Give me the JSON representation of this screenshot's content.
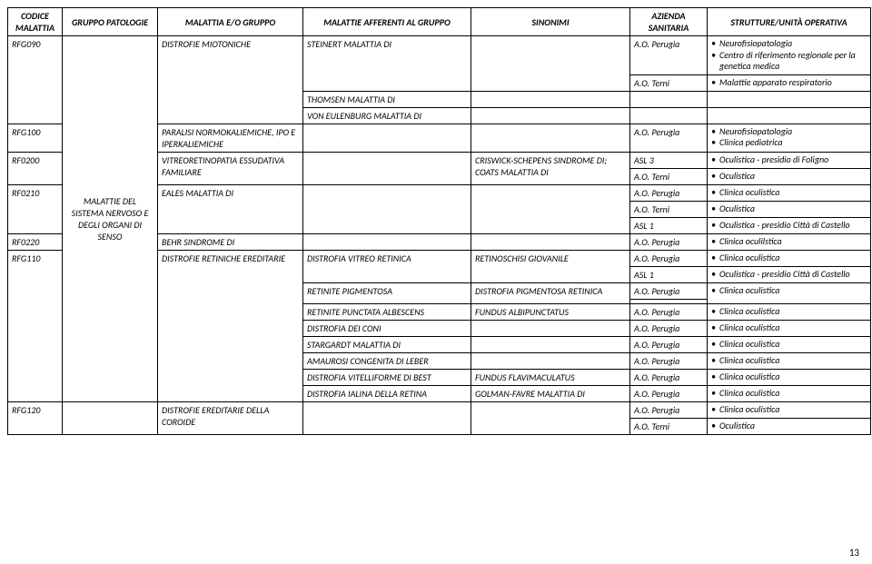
{
  "headers": {
    "codice": "CODICE MALATTIA",
    "gruppo": "GRUPPO PATOLOGIE",
    "malattia": "MALATTIA E/O GRUPPO",
    "afferenti": "MALATTIE AFFERENTI AL GRUPPO",
    "sinonimi": "SINONIMI",
    "azienda": "AZIENDA SANITARIA",
    "strutture": "STRUTTURE/UNITÀ OPERATIVA"
  },
  "gruppo_label": "MALATTIE DEL SISTEMA NERVOSO E DEGLI ORGANI DI SENSO",
  "rows": {
    "rfg090_code": "RFG090",
    "rfg090_mal": "DISTROFIE MIOTONICHE",
    "rfg090_aff1": "STEINERT MALATTIA DI",
    "rfg090_az1": "A.O. Perugia",
    "rfg090_str1_a": "Neurofisiopatologia",
    "rfg090_str1_b": "Centro di riferimento regionale per la genetica medica",
    "rfg090_az2": "A.O. Terni",
    "rfg090_str2": "Malattie apparato respiratorio",
    "rfg090_aff2": "THOMSEN MALATTIA DI",
    "rfg090_aff3": "VON EULENBURG MALATTIA DI",
    "rfg100_code": "RFG100",
    "rfg100_mal": "PARALISI NORMOKALIEMICHE, IPO E IPERKALIEMICHE",
    "rfg100_az": "A.O. Perugia",
    "rfg100_str_a": "Neurofisiopatologia",
    "rfg100_str_b": "Clinica pediatrica",
    "rf0200_code": "RF0200",
    "rf0200_mal": "VITREORETINOPATIA ESSUDATIVA FAMILIARE",
    "rf0200_sin": "CRISWICK-SCHEPENS SINDROME DI; COATS MALATTIA DI",
    "rf0200_az1": "ASL 3",
    "rf0200_str1": "Oculistica - presidio di Foligno",
    "rf0200_az2": "A.O. Terni",
    "rf0200_str2": "Oculistica",
    "rf0210_code": "RF0210",
    "rf0210_mal": "EALES MALATTIA DI",
    "rf0210_az1": "A.O. Perugia",
    "rf0210_str1": "Clinica oculistica",
    "rf0210_az2": "A.O. Terni",
    "rf0210_str2": "Oculistica",
    "rf0210_az3": "ASL 1",
    "rf0210_str3": "Oculistica - presidio Città di Castello",
    "rf0220_code": "RF0220",
    "rf0220_mal": "BEHR SINDROME DI",
    "rf0220_az": "A.O. Perugia",
    "rf0220_str": "Clinica oculilstica",
    "rfg110_code": "RFG110",
    "rfg110_mal": "DISTROFIE RETINICHE EREDITARIE",
    "rfg110_aff1": "DISTROFIA VITREO RETINICA",
    "rfg110_sin1": "RETINOSCHISI GIOVANILE",
    "rfg110_az1": "A.O. Perugia",
    "rfg110_str1": "Clinica oculistica",
    "rfg110_az2": "ASL 1",
    "rfg110_str2": "Oculistica - presidio Città di Castello",
    "rfg110_aff2": "RETINITE PIGMENTOSA",
    "rfg110_sin2": "DISTROFIA PIGMENTOSA RETINICA",
    "rfg110_az3": "A.O. Perugia",
    "rfg110_str3": "Clinica oculistica",
    "rfg110_aff3": "RETINITE PUNCTATA ALBESCENS",
    "rfg110_sin3": "FUNDUS  ALBIPUNCTATUS",
    "rfg110_az4": "A.O. Perugia",
    "rfg110_str4": "Clinica oculistica",
    "rfg110_aff4": "DISTROFIA DEI CONI",
    "rfg110_az5": "A.O. Perugia",
    "rfg110_str5": "Clinica oculistica",
    "rfg110_aff5": "STARGARDT MALATTIA DI",
    "rfg110_az6": "A.O. Perugia",
    "rfg110_str6": "Clinica oculistica",
    "rfg110_aff6": "AMAUROSI CONGENITA DI LEBER",
    "rfg110_az7": "A.O. Perugia",
    "rfg110_str7": "Clinica oculistica",
    "rfg110_aff7": "DISTROFIA VITELLIFORME DI BEST",
    "rfg110_sin7": "FUNDUS FLAVIMACULATUS",
    "rfg110_az8": "A.O. Perugia",
    "rfg110_str8": "Clinica oculistica",
    "rfg110_aff8": "DISTROFIA IALINA DELLA RETINA",
    "rfg110_sin8": "GOLMAN-FAVRE MALATTIA DI",
    "rfg110_az9": "A.O. Perugia",
    "rfg110_str9": "Clinica oculistica",
    "rfg120_code": "RFG120",
    "rfg120_mal": "DISTROFIE EREDITARIE DELLA COROIDE",
    "rfg120_az1": "A.O. Perugia",
    "rfg120_str1": "Clinica oculistica",
    "rfg120_az2": "A.O. Terni",
    "rfg120_str2": "Oculistica"
  },
  "page": "13"
}
